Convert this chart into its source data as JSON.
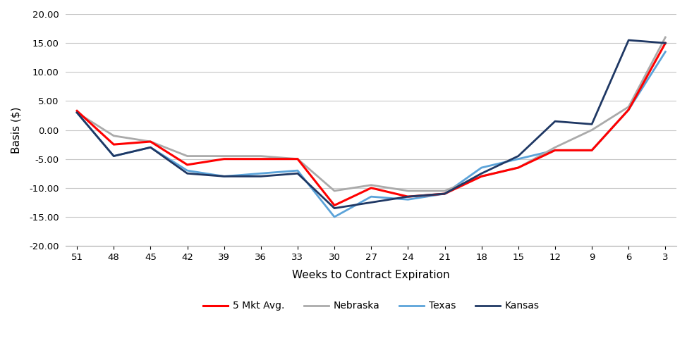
{
  "x_ticks": [
    51,
    48,
    45,
    42,
    39,
    36,
    33,
    30,
    27,
    24,
    21,
    18,
    15,
    12,
    9,
    6,
    3
  ],
  "series": {
    "5 Mkt Avg.": {
      "color": "#FF0000",
      "linewidth": 2.2,
      "zorder": 4,
      "values": [
        3.3,
        -2.5,
        -2.0,
        -6.0,
        -5.0,
        -5.0,
        -5.0,
        -13.0,
        -10.0,
        -11.5,
        -11.0,
        -8.0,
        -6.5,
        -3.5,
        -3.5,
        3.5,
        15.0
      ]
    },
    "Nebraska": {
      "color": "#AAAAAA",
      "linewidth": 2.0,
      "zorder": 3,
      "values": [
        3.0,
        -1.0,
        -2.0,
        -4.5,
        -4.5,
        -4.5,
        -5.0,
        -10.5,
        -9.5,
        -10.5,
        -10.5,
        -8.0,
        -6.5,
        -3.0,
        0.0,
        4.0,
        16.0
      ]
    },
    "Texas": {
      "color": "#5BA3D9",
      "linewidth": 2.0,
      "zorder": 2,
      "values": [
        3.0,
        -4.5,
        -3.0,
        -7.0,
        -8.0,
        -7.5,
        -7.0,
        -15.0,
        -11.5,
        -12.0,
        -11.0,
        -6.5,
        -5.0,
        -3.5,
        -3.5,
        3.5,
        13.5
      ]
    },
    "Kansas": {
      "color": "#1F3864",
      "linewidth": 2.0,
      "zorder": 5,
      "values": [
        3.0,
        -4.5,
        -3.0,
        -7.5,
        -8.0,
        -8.0,
        -7.5,
        -13.5,
        -12.5,
        -11.5,
        -11.0,
        -7.5,
        -4.5,
        1.5,
        1.0,
        15.5,
        15.0
      ]
    }
  },
  "xlabel": "Weeks to Contract Expiration",
  "ylabel": "Basis ($)",
  "ylim": [
    -20.0,
    20.0
  ],
  "yticks": [
    -20.0,
    -15.0,
    -10.0,
    -5.0,
    0.0,
    5.0,
    10.0,
    15.0,
    20.0
  ],
  "background_color": "#FFFFFF",
  "grid_color": "#C8C8C8",
  "legend_order": [
    "5 Mkt Avg.",
    "Nebraska",
    "Texas",
    "Kansas"
  ]
}
